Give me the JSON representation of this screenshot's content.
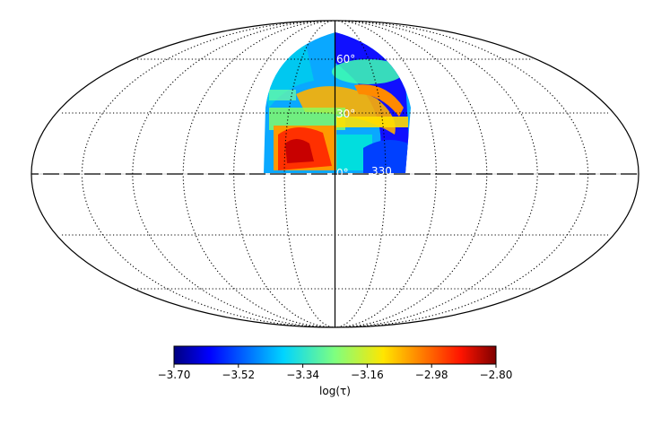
{
  "map": {
    "projection": "mollweide",
    "grid_labels": {
      "lat_60": "60°",
      "lat_30": "30°",
      "lon_0": "0°",
      "lon_330": "330"
    }
  },
  "colorbar": {
    "colormap": "jet",
    "range": [
      -3.7,
      -2.8
    ],
    "ticks": [
      "−3.70",
      "−3.52",
      "−3.34",
      "−3.16",
      "−2.98",
      "−2.80"
    ],
    "label": "log(τ)"
  }
}
